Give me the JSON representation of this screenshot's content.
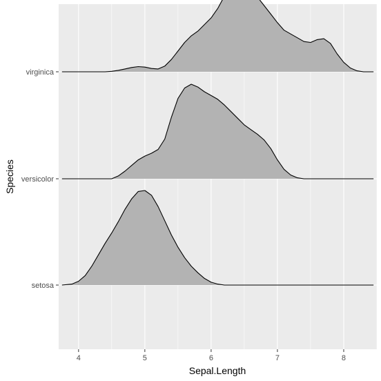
{
  "chart_data": {
    "type": "ridgeline",
    "title": "",
    "xlabel": "Sepal.Length",
    "ylabel": "Species",
    "xlim": [
      3.7,
      8.5
    ],
    "x_ticks": [
      4,
      5,
      6,
      7,
      8
    ],
    "x_tick_labels": [
      "4",
      "5",
      "6",
      "7",
      "8"
    ],
    "categories": [
      "setosa",
      "versicolor",
      "virginica"
    ],
    "grid": true,
    "legend": "none",
    "colors": {
      "panel": "#ebebeb",
      "grid_major": "#ffffff",
      "fill": "#b3b3b3",
      "outline": "#000000",
      "tick_text": "#4d4d4d"
    },
    "series": [
      {
        "name": "setosa",
        "points": [
          [
            3.75,
            0
          ],
          [
            3.9,
            0.01
          ],
          [
            4.0,
            0.04
          ],
          [
            4.1,
            0.1
          ],
          [
            4.2,
            0.2
          ],
          [
            4.3,
            0.32
          ],
          [
            4.4,
            0.44
          ],
          [
            4.5,
            0.55
          ],
          [
            4.6,
            0.67
          ],
          [
            4.7,
            0.8
          ],
          [
            4.8,
            0.91
          ],
          [
            4.9,
            0.99
          ],
          [
            5.0,
            1.0
          ],
          [
            5.1,
            0.95
          ],
          [
            5.2,
            0.83
          ],
          [
            5.3,
            0.68
          ],
          [
            5.4,
            0.53
          ],
          [
            5.5,
            0.4
          ],
          [
            5.6,
            0.29
          ],
          [
            5.7,
            0.2
          ],
          [
            5.8,
            0.13
          ],
          [
            5.9,
            0.07
          ],
          [
            6.0,
            0.03
          ],
          [
            6.1,
            0.01
          ],
          [
            6.2,
            0
          ],
          [
            8.45,
            0
          ]
        ]
      },
      {
        "name": "versicolor",
        "points": [
          [
            3.75,
            0
          ],
          [
            4.5,
            0
          ],
          [
            4.6,
            0.03
          ],
          [
            4.7,
            0.08
          ],
          [
            4.8,
            0.14
          ],
          [
            4.9,
            0.2
          ],
          [
            5.0,
            0.24
          ],
          [
            5.1,
            0.27
          ],
          [
            5.2,
            0.31
          ],
          [
            5.3,
            0.42
          ],
          [
            5.4,
            0.65
          ],
          [
            5.5,
            0.85
          ],
          [
            5.6,
            0.96
          ],
          [
            5.7,
            1.0
          ],
          [
            5.8,
            0.97
          ],
          [
            5.9,
            0.92
          ],
          [
            6.0,
            0.88
          ],
          [
            6.1,
            0.84
          ],
          [
            6.2,
            0.78
          ],
          [
            6.3,
            0.71
          ],
          [
            6.4,
            0.64
          ],
          [
            6.5,
            0.57
          ],
          [
            6.6,
            0.52
          ],
          [
            6.7,
            0.47
          ],
          [
            6.8,
            0.41
          ],
          [
            6.9,
            0.32
          ],
          [
            7.0,
            0.2
          ],
          [
            7.1,
            0.1
          ],
          [
            7.2,
            0.04
          ],
          [
            7.3,
            0.01
          ],
          [
            7.4,
            0
          ],
          [
            8.45,
            0
          ]
        ]
      },
      {
        "name": "virginica",
        "points": [
          [
            3.75,
            0
          ],
          [
            4.4,
            0
          ],
          [
            4.5,
            0.005
          ],
          [
            4.6,
            0.015
          ],
          [
            4.7,
            0.03
          ],
          [
            4.8,
            0.045
          ],
          [
            4.9,
            0.055
          ],
          [
            5.0,
            0.05
          ],
          [
            5.1,
            0.035
          ],
          [
            5.2,
            0.03
          ],
          [
            5.3,
            0.06
          ],
          [
            5.4,
            0.13
          ],
          [
            5.5,
            0.22
          ],
          [
            5.6,
            0.31
          ],
          [
            5.7,
            0.38
          ],
          [
            5.8,
            0.43
          ],
          [
            5.9,
            0.5
          ],
          [
            6.0,
            0.57
          ],
          [
            6.1,
            0.67
          ],
          [
            6.2,
            0.8
          ],
          [
            6.3,
            0.94
          ],
          [
            6.4,
            1.0
          ],
          [
            6.5,
            0.96
          ],
          [
            6.6,
            0.88
          ],
          [
            6.7,
            0.79
          ],
          [
            6.8,
            0.7
          ],
          [
            6.9,
            0.61
          ],
          [
            7.0,
            0.52
          ],
          [
            7.1,
            0.44
          ],
          [
            7.2,
            0.4
          ],
          [
            7.3,
            0.36
          ],
          [
            7.4,
            0.32
          ],
          [
            7.5,
            0.31
          ],
          [
            7.6,
            0.34
          ],
          [
            7.7,
            0.35
          ],
          [
            7.8,
            0.3
          ],
          [
            7.9,
            0.19
          ],
          [
            8.0,
            0.1
          ],
          [
            8.1,
            0.04
          ],
          [
            8.2,
            0.01
          ],
          [
            8.3,
            0
          ],
          [
            8.45,
            0
          ]
        ]
      }
    ]
  }
}
